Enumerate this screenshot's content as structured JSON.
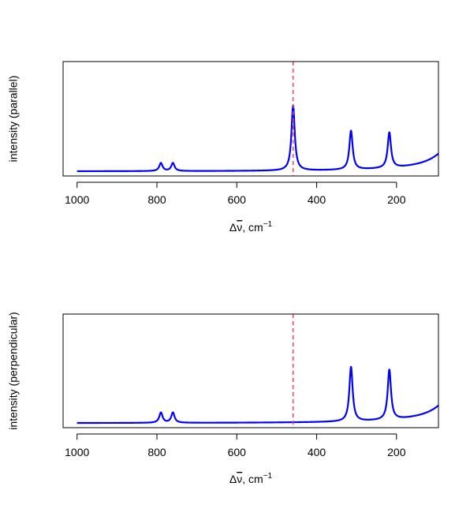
{
  "chart_data": [
    {
      "type": "line",
      "title": "",
      "ylabel": "intensity (parallel)",
      "xlabel": {
        "prefix": "Δ",
        "var": "ν",
        "suffix": ", cm",
        "sup": "−1"
      },
      "x_reversed": true,
      "xlim": [
        1035,
        95
      ],
      "ylim": [
        0,
        1.0
      ],
      "x_ticks": [
        1000,
        800,
        600,
        400,
        200
      ],
      "x_tick_labels": [
        "1000",
        "800",
        "600",
        "400",
        "200"
      ],
      "reference_line": {
        "x": 459,
        "style": "dashed",
        "color": "#e8505b"
      },
      "series": [
        {
          "color": "#0000ff",
          "baseline": 0.04,
          "peaks": [
            {
              "center": 790,
              "height": 0.07,
              "width": 5
            },
            {
              "center": 760,
              "height": 0.07,
              "width": 5
            },
            {
              "center": 459,
              "height": 0.57,
              "width": 5
            },
            {
              "center": 314,
              "height": 0.34,
              "width": 5
            },
            {
              "center": 218,
              "height": 0.31,
              "width": 5
            }
          ],
          "rayleigh": {
            "center": 0,
            "height": 2.4,
            "width": 25
          }
        }
      ]
    },
    {
      "type": "line",
      "title": "",
      "ylabel": "intensity (perpendicular)",
      "xlabel": {
        "prefix": "Δ",
        "var": "ν",
        "suffix": ", cm",
        "sup": "−1"
      },
      "x_reversed": true,
      "xlim": [
        1035,
        95
      ],
      "ylim": [
        0,
        1.0
      ],
      "x_ticks": [
        1000,
        800,
        600,
        400,
        200
      ],
      "x_tick_labels": [
        "1000",
        "800",
        "600",
        "400",
        "200"
      ],
      "reference_line": {
        "x": 459,
        "style": "dashed",
        "color": "#e8505b"
      },
      "series": [
        {
          "color": "#0000ff",
          "baseline": 0.04,
          "peaks": [
            {
              "center": 790,
              "height": 0.09,
              "width": 5
            },
            {
              "center": 760,
              "height": 0.09,
              "width": 5
            },
            {
              "center": 314,
              "height": 0.48,
              "width": 5
            },
            {
              "center": 218,
              "height": 0.44,
              "width": 5
            }
          ],
          "rayleigh": {
            "center": 0,
            "height": 2.4,
            "width": 25
          }
        }
      ]
    }
  ]
}
